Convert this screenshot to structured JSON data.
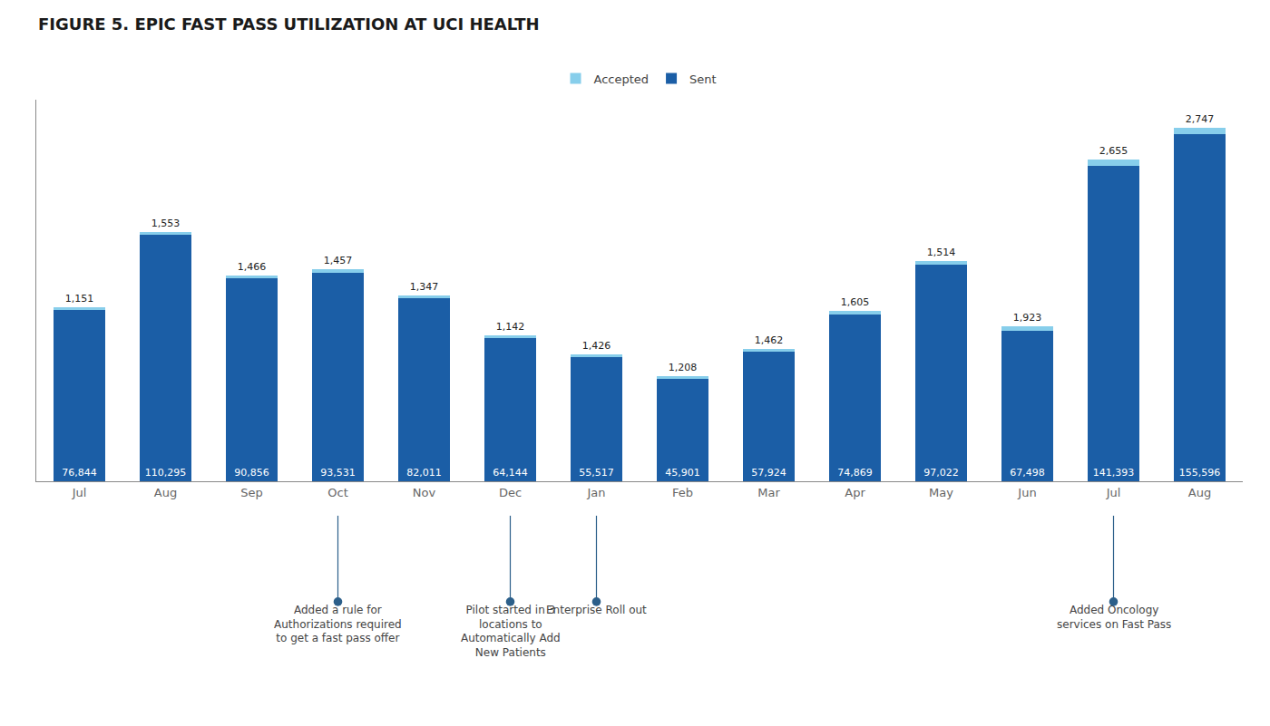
{
  "chart_data": {
    "type": "bar",
    "title": "FIGURE 5. EPIC FAST PASS UTILIZATION AT UCI HEALTH",
    "categories": [
      "Jul",
      "Aug",
      "Sep",
      "Oct",
      "Nov",
      "Dec",
      "Jan",
      "Feb",
      "Mar",
      "Apr",
      "May",
      "Jun",
      "Jul",
      "Aug"
    ],
    "series": [
      {
        "name": "Sent",
        "color": "#1B5EA6",
        "values": [
          76844,
          110295,
          90856,
          93531,
          82011,
          64144,
          55517,
          45901,
          57924,
          74869,
          97022,
          67498,
          141393,
          155596
        ],
        "value_labels": [
          "76,844",
          "110,295",
          "90,856",
          "93,531",
          "82,011",
          "64,144",
          "55,517",
          "45,901",
          "57,924",
          "74,869",
          "97,022",
          "67,498",
          "141,393",
          "155,596"
        ]
      },
      {
        "name": "Accepted",
        "color": "#87CEEB",
        "values": [
          1151,
          1553,
          1466,
          1457,
          1347,
          1142,
          1426,
          1208,
          1462,
          1605,
          1514,
          1923,
          2655,
          2747
        ],
        "value_labels": [
          "1,151",
          "1,553",
          "1,466",
          "1,457",
          "1,347",
          "1,142",
          "1,426",
          "1,208",
          "1,462",
          "1,605",
          "1,514",
          "1,923",
          "2,655",
          "2,747"
        ]
      }
    ],
    "stacked": true,
    "data_labels": true,
    "ylim": [
      0,
      171010.44
    ],
    "tick_labels": "x",
    "grid": false,
    "legend": "top",
    "annotations": [
      {
        "index": 3,
        "text": "Added a rule for\nAuthorizations required\nto get a fast pass offer"
      },
      {
        "index": 5,
        "text": "Pilot started in 3\nlocations to\nAutomatically Add\nNew Patients"
      },
      {
        "index": 6,
        "text": "Enterprise Roll out"
      },
      {
        "index": 12,
        "text": "Added Oncology\nservices on Fast Pass"
      }
    ]
  }
}
